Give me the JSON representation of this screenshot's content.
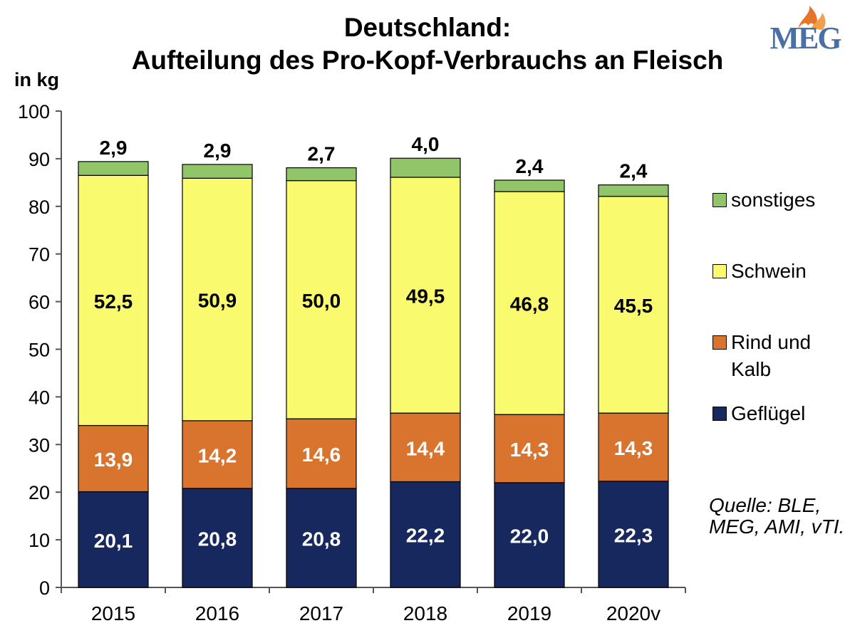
{
  "chart_data": {
    "type": "bar",
    "stacked": true,
    "title": "Deutschland:",
    "subtitle": "Aufteilung des Pro-Kopf-Verbrauchs an Fleisch",
    "ylabel": "in kg",
    "xlabel": "",
    "ylim": [
      0,
      100
    ],
    "yticks": [
      0,
      10,
      20,
      30,
      40,
      50,
      60,
      70,
      80,
      90,
      100
    ],
    "categories": [
      "2015",
      "2016",
      "2017",
      "2018",
      "2019",
      "2020v"
    ],
    "series": [
      {
        "name": "Geflügel",
        "color": "#17285e",
        "label_color": "#ffffff",
        "values": [
          20.1,
          20.8,
          20.8,
          22.2,
          22.0,
          22.3
        ],
        "labels": [
          "20,1",
          "20,8",
          "20,8",
          "22,2",
          "22,0",
          "22,3"
        ]
      },
      {
        "name": "Rind und Kalb",
        "color": "#d9742f",
        "label_color": "#ffffff",
        "values": [
          13.9,
          14.2,
          14.6,
          14.4,
          14.3,
          14.3
        ],
        "labels": [
          "13,9",
          "14,2",
          "14,6",
          "14,4",
          "14,3",
          "14,3"
        ]
      },
      {
        "name": "Schwein",
        "color": "#fafa6e",
        "label_color": "#000000",
        "values": [
          52.5,
          50.9,
          50.0,
          49.5,
          46.8,
          45.5
        ],
        "labels": [
          "52,5",
          "50,9",
          "50,0",
          "49,5",
          "46,8",
          "45,5"
        ]
      },
      {
        "name": "sonstiges",
        "color": "#92c56a",
        "label_color": "#000000",
        "values": [
          2.9,
          2.9,
          2.7,
          4.0,
          2.4,
          2.4
        ],
        "labels": [
          "2,9",
          "2,9",
          "2,7",
          "4,0",
          "2,4",
          "2,4"
        ]
      }
    ],
    "legend": {
      "position": "right",
      "items": [
        "sonstiges",
        "Schwein",
        "Rind und Kalb",
        "Geflügel"
      ]
    },
    "grid": false
  },
  "source_note": "Quelle: BLE, MEG, AMI, vTI.",
  "logo": {
    "text": "MEG",
    "flame_color": "#e8742a",
    "text_color": "#4a6fa5"
  }
}
